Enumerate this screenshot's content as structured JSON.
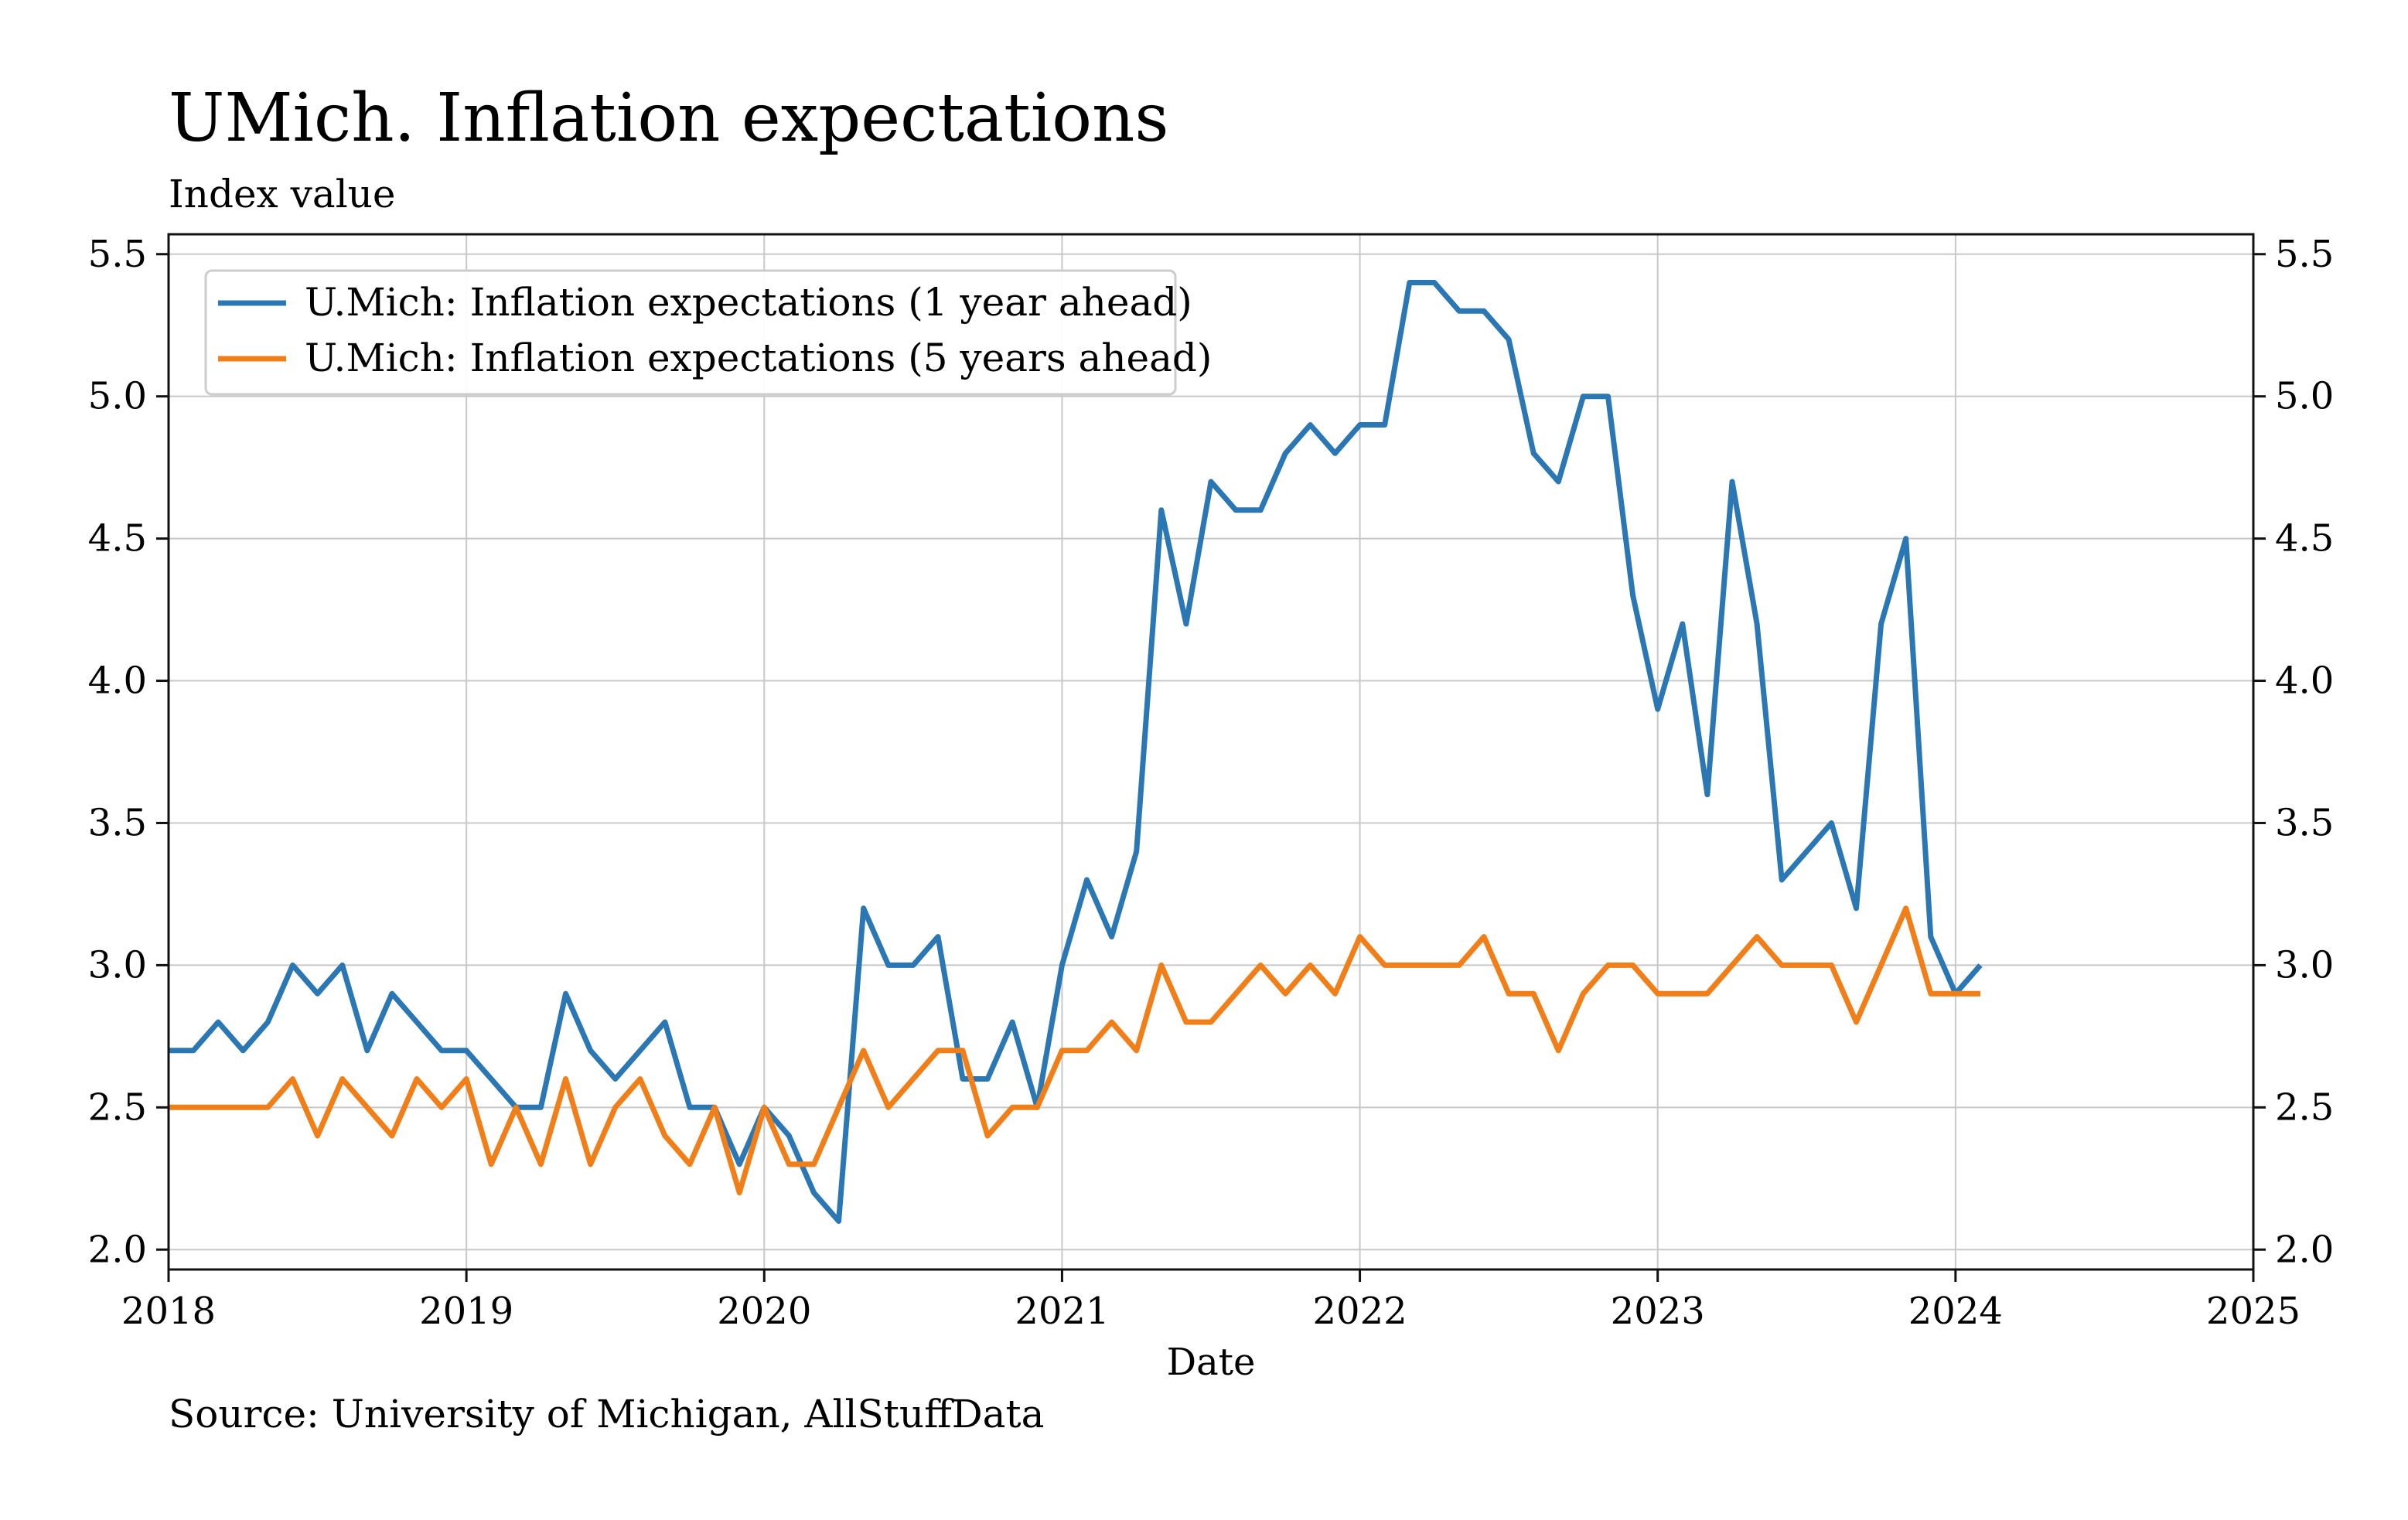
{
  "chart_data": {
    "type": "line",
    "title": "UMich. Inflation expectations",
    "subtitle": "Index value",
    "xlabel": "Date",
    "ylabel": "",
    "source": "Source: University of Michigan, AllStuffData",
    "xlim": [
      "2018-01",
      "2025-01"
    ],
    "ylim": [
      1.93,
      5.57
    ],
    "x_ticks": [
      "2018",
      "2019",
      "2020",
      "2021",
      "2022",
      "2023",
      "2024",
      "2025"
    ],
    "y_ticks": [
      "2.0",
      "2.5",
      "3.0",
      "3.5",
      "4.0",
      "4.5",
      "5.0",
      "5.5"
    ],
    "y_axis_both_sides": true,
    "grid": true,
    "legend_position": "top-left",
    "series": [
      {
        "name": "U.Mich: Inflation expectations (1 year ahead)",
        "color": "#2a77b4",
        "dates": [
          "2018-01",
          "2018-02",
          "2018-03",
          "2018-04",
          "2018-05",
          "2018-06",
          "2018-07",
          "2018-08",
          "2018-09",
          "2018-10",
          "2018-11",
          "2018-12",
          "2019-01",
          "2019-02",
          "2019-03",
          "2019-04",
          "2019-05",
          "2019-06",
          "2019-07",
          "2019-08",
          "2019-09",
          "2019-10",
          "2019-11",
          "2019-12",
          "2020-01",
          "2020-02",
          "2020-03",
          "2020-04",
          "2020-05",
          "2020-06",
          "2020-07",
          "2020-08",
          "2020-09",
          "2020-10",
          "2020-11",
          "2020-12",
          "2021-01",
          "2021-02",
          "2021-03",
          "2021-04",
          "2021-05",
          "2021-06",
          "2021-07",
          "2021-08",
          "2021-09",
          "2021-10",
          "2021-11",
          "2021-12",
          "2022-01",
          "2022-02",
          "2022-03",
          "2022-04",
          "2022-05",
          "2022-06",
          "2022-07",
          "2022-08",
          "2022-09",
          "2022-10",
          "2022-11",
          "2022-12",
          "2023-01",
          "2023-02",
          "2023-03",
          "2023-04",
          "2023-05",
          "2023-06",
          "2023-07",
          "2023-08",
          "2023-09",
          "2023-10",
          "2023-11",
          "2023-12",
          "2024-01",
          "2024-02"
        ],
        "values": [
          2.7,
          2.7,
          2.8,
          2.7,
          2.8,
          3.0,
          2.9,
          3.0,
          2.7,
          2.9,
          2.8,
          2.7,
          2.7,
          2.6,
          2.5,
          2.5,
          2.9,
          2.7,
          2.6,
          2.7,
          2.8,
          2.5,
          2.5,
          2.3,
          2.5,
          2.4,
          2.2,
          2.1,
          3.2,
          3.0,
          3.0,
          3.1,
          2.6,
          2.6,
          2.8,
          2.5,
          3.0,
          3.3,
          3.1,
          3.4,
          4.6,
          4.2,
          4.7,
          4.6,
          4.6,
          4.8,
          4.9,
          4.8,
          4.9,
          4.9,
          5.4,
          5.4,
          5.3,
          5.3,
          5.2,
          4.8,
          4.7,
          5.0,
          5.0,
          4.3,
          3.9,
          4.2,
          3.6,
          4.7,
          4.2,
          3.3,
          3.4,
          3.5,
          3.2,
          4.2,
          4.5,
          3.1,
          2.9,
          3.0
        ]
      },
      {
        "name": "U.Mich: Inflation expectations (5 years ahead)",
        "color": "#f07f19",
        "dates": [
          "2018-01",
          "2018-02",
          "2018-03",
          "2018-04",
          "2018-05",
          "2018-06",
          "2018-07",
          "2018-08",
          "2018-09",
          "2018-10",
          "2018-11",
          "2018-12",
          "2019-01",
          "2019-02",
          "2019-03",
          "2019-04",
          "2019-05",
          "2019-06",
          "2019-07",
          "2019-08",
          "2019-09",
          "2019-10",
          "2019-11",
          "2019-12",
          "2020-01",
          "2020-02",
          "2020-03",
          "2020-04",
          "2020-05",
          "2020-06",
          "2020-07",
          "2020-08",
          "2020-09",
          "2020-10",
          "2020-11",
          "2020-12",
          "2021-01",
          "2021-02",
          "2021-03",
          "2021-04",
          "2021-05",
          "2021-06",
          "2021-07",
          "2021-08",
          "2021-09",
          "2021-10",
          "2021-11",
          "2021-12",
          "2022-01",
          "2022-02",
          "2022-03",
          "2022-04",
          "2022-05",
          "2022-06",
          "2022-07",
          "2022-08",
          "2022-09",
          "2022-10",
          "2022-11",
          "2022-12",
          "2023-01",
          "2023-02",
          "2023-03",
          "2023-04",
          "2023-05",
          "2023-06",
          "2023-07",
          "2023-08",
          "2023-09",
          "2023-10",
          "2023-11",
          "2023-12",
          "2024-01",
          "2024-02"
        ],
        "values": [
          2.5,
          2.5,
          2.5,
          2.5,
          2.5,
          2.6,
          2.4,
          2.6,
          2.5,
          2.4,
          2.6,
          2.5,
          2.6,
          2.3,
          2.5,
          2.3,
          2.6,
          2.3,
          2.5,
          2.6,
          2.4,
          2.3,
          2.5,
          2.2,
          2.5,
          2.3,
          2.3,
          2.5,
          2.7,
          2.5,
          2.6,
          2.7,
          2.7,
          2.4,
          2.5,
          2.5,
          2.7,
          2.7,
          2.8,
          2.7,
          3.0,
          2.8,
          2.8,
          2.9,
          3.0,
          2.9,
          3.0,
          2.9,
          3.1,
          3.0,
          3.0,
          3.0,
          3.0,
          3.1,
          2.9,
          2.9,
          2.7,
          2.9,
          3.0,
          3.0,
          2.9,
          2.9,
          2.9,
          3.0,
          3.1,
          3.0,
          3.0,
          3.0,
          2.8,
          3.0,
          3.2,
          2.9,
          2.9,
          2.9
        ]
      }
    ]
  }
}
